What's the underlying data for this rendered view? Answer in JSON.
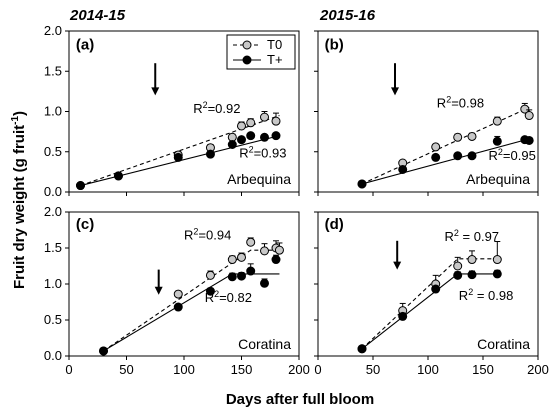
{
  "seasons": [
    "2014-15",
    "2015-16"
  ],
  "axis": {
    "ylabel_main": "Fruit dry weight (g fruit",
    "ylabel_sup": "-1",
    "ylabel_close": ")",
    "xlabel": "Days after full bloom",
    "yticks": [
      "0.0",
      "0.5",
      "1.0",
      "1.5",
      "2.0"
    ],
    "xticks": [
      "0",
      "50",
      "100",
      "150",
      "200"
    ]
  },
  "legend": {
    "t0": "T0",
    "tplus": "T+"
  },
  "chart_data": [
    {
      "type": "line",
      "panel": "(a)",
      "cultivar": "Arbequina",
      "season": "2014-15",
      "xlim": [
        0,
        200
      ],
      "ylim": [
        0,
        2.0
      ],
      "arrow_x": 75,
      "series": [
        {
          "name": "T0",
          "x": [
            10,
            43,
            95,
            123,
            142,
            150,
            158,
            170,
            180
          ],
          "y": [
            0.08,
            0.2,
            0.46,
            0.55,
            0.68,
            0.82,
            0.86,
            0.93,
            0.88
          ],
          "err": [
            0,
            0,
            0.04,
            0.04,
            0.04,
            0.05,
            0.05,
            0.07,
            0.1
          ],
          "fit_x": [
            10,
            183
          ],
          "fit_y": [
            0.08,
            0.95
          ],
          "r2": "0.92"
        },
        {
          "name": "T+",
          "x": [
            10,
            43,
            95,
            123,
            142,
            150,
            158,
            170,
            180
          ],
          "y": [
            0.08,
            0.2,
            0.43,
            0.47,
            0.59,
            0.65,
            0.7,
            0.68,
            0.7
          ],
          "err": [
            0,
            0,
            0.02,
            0.03,
            0.03,
            0.03,
            0.03,
            0.03,
            0.03
          ],
          "fit_x": [
            10,
            183
          ],
          "fit_y": [
            0.08,
            0.7
          ],
          "r2": "0.93"
        }
      ]
    },
    {
      "type": "line",
      "panel": "(b)",
      "cultivar": "Arbequina",
      "season": "2015-16",
      "xlim": [
        0,
        200
      ],
      "ylim": [
        0,
        2.0
      ],
      "arrow_x": 70,
      "series": [
        {
          "name": "T0",
          "x": [
            40,
            77,
            107,
            127,
            140,
            163,
            188,
            192
          ],
          "y": [
            0.1,
            0.36,
            0.56,
            0.68,
            0.69,
            0.88,
            1.03,
            0.95
          ],
          "err": [
            0,
            0.03,
            0.03,
            0.04,
            0.04,
            0.05,
            0.07,
            0.07
          ],
          "fit_x": [
            40,
            192
          ],
          "fit_y": [
            0.1,
            1.05
          ],
          "r2": "0.98"
        },
        {
          "name": "T+",
          "x": [
            40,
            77,
            107,
            127,
            140,
            163,
            188,
            192
          ],
          "y": [
            0.1,
            0.28,
            0.43,
            0.45,
            0.45,
            0.63,
            0.65,
            0.64
          ],
          "err": [
            0,
            0.02,
            0.02,
            0.03,
            0.03,
            0.06,
            0.03,
            0.03
          ],
          "fit_x": [
            40,
            192
          ],
          "fit_y": [
            0.1,
            0.66
          ],
          "r2": "0.95"
        }
      ]
    },
    {
      "type": "line",
      "panel": "(c)",
      "cultivar": "Coratina",
      "season": "2014-15",
      "xlim": [
        0,
        200
      ],
      "ylim": [
        0,
        2.0
      ],
      "arrow_x": 78,
      "series": [
        {
          "name": "T0",
          "x": [
            30,
            95,
            123,
            142,
            150,
            158,
            170,
            180,
            183
          ],
          "y": [
            0.07,
            0.86,
            1.12,
            1.34,
            1.37,
            1.58,
            1.46,
            1.5,
            1.47
          ],
          "err": [
            0,
            0.04,
            0.06,
            0.05,
            0.06,
            0.06,
            0.1,
            0.1,
            0.1
          ],
          "fit_x": [
            30,
            158,
            183
          ],
          "fit_y": [
            0.07,
            1.47,
            1.47
          ],
          "r2": "0.94"
        },
        {
          "name": "T+",
          "x": [
            30,
            95,
            123,
            142,
            150,
            158,
            170,
            180
          ],
          "y": [
            0.07,
            0.68,
            0.9,
            1.1,
            1.11,
            1.18,
            1.01,
            1.34
          ],
          "err": [
            0,
            0.03,
            0.04,
            0.05,
            0.05,
            0.1,
            0.06,
            0.06
          ],
          "fit_x": [
            30,
            142,
            183
          ],
          "fit_y": [
            0.07,
            1.14,
            1.14
          ],
          "r2": "0.82"
        }
      ]
    },
    {
      "type": "line",
      "panel": "(d)",
      "cultivar": "Coratina",
      "season": "2015-16",
      "xlim": [
        0,
        200
      ],
      "ylim": [
        0,
        2.0
      ],
      "arrow_x": 72,
      "series": [
        {
          "name": "T0",
          "x": [
            40,
            77,
            107,
            127,
            140,
            163
          ],
          "y": [
            0.1,
            0.63,
            1.0,
            1.25,
            1.34,
            1.34
          ],
          "err": [
            0,
            0.1,
            0.12,
            0.12,
            0.12,
            0.25
          ],
          "fit_x": [
            40,
            127,
            163
          ],
          "fit_y": [
            0.1,
            1.35,
            1.35
          ],
          "r2": "0.97"
        },
        {
          "name": "T+",
          "x": [
            40,
            77,
            107,
            127,
            140,
            163
          ],
          "y": [
            0.1,
            0.55,
            0.93,
            1.12,
            1.13,
            1.14
          ],
          "err": [
            0,
            0.04,
            0.04,
            0.05,
            0.05,
            0.05
          ],
          "fit_x": [
            40,
            127,
            163
          ],
          "fit_y": [
            0.1,
            1.14,
            1.14
          ],
          "r2": "0.98"
        }
      ]
    }
  ]
}
